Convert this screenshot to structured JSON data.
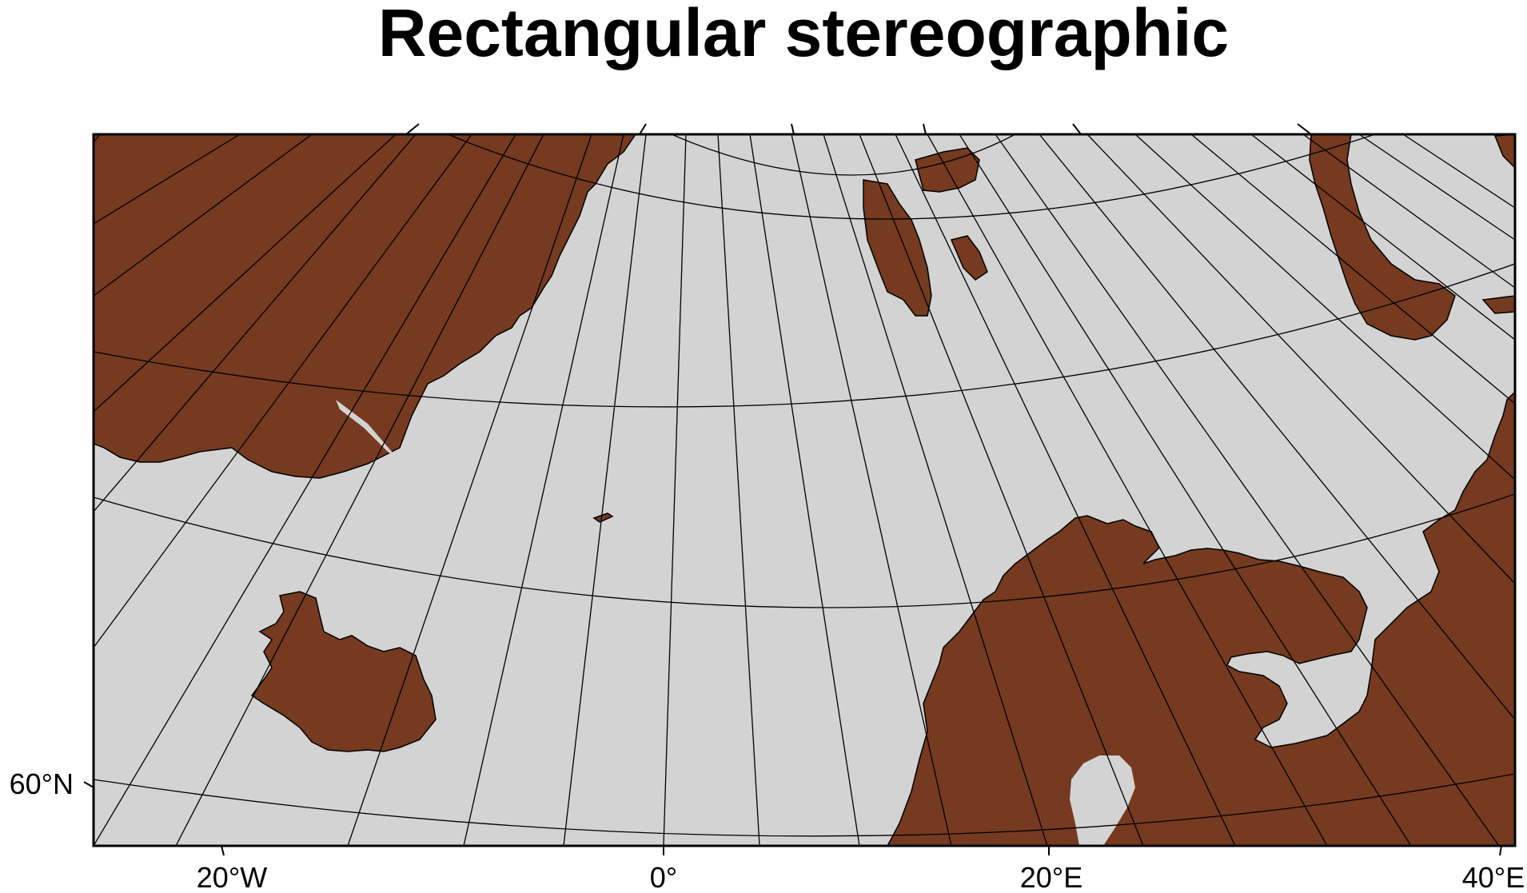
{
  "title": "Rectangular stereographic",
  "colors": {
    "ocean": "#d3d3d3",
    "land": "#753a1f",
    "grid": "#000000",
    "frame": "#000000"
  },
  "axes": {
    "x_labels": [
      "20°W",
      "0°",
      "20°E",
      "40°E"
    ],
    "y_labels": [
      "60°N"
    ]
  },
  "features": {
    "landmasses": [
      "Greenland",
      "Iceland",
      "Svalbard",
      "Jan Mayen",
      "Novaya Zemlya",
      "Scandinavia",
      "Kola Peninsula",
      "Russia"
    ]
  }
}
